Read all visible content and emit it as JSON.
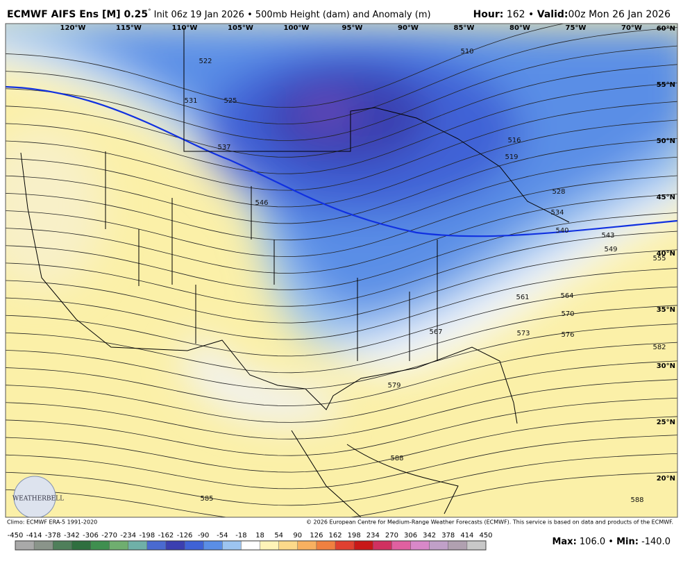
{
  "header": {
    "model": "ECMWF AIFS Ens [M] 0.25",
    "degree": "°",
    "init": "Init 06z 19 Jan 2026 • 500mb Height (dam) and Anomaly (m)",
    "hour_label": "Hour:",
    "hour": "162",
    "separator": "•",
    "valid_label": "Valid:",
    "valid": "00z Mon 26 Jan 2026"
  },
  "map": {
    "longitudes": [
      "120°W",
      "115°W",
      "110°W",
      "105°W",
      "100°W",
      "95°W",
      "90°W",
      "85°W",
      "80°W",
      "75°W",
      "70°W"
    ],
    "latitudes": [
      "60°N",
      "55°N",
      "50°N",
      "45°N",
      "40°N",
      "35°N",
      "30°N",
      "25°N",
      "20°N"
    ],
    "contour_labels": [
      "510",
      "516",
      "519",
      "522",
      "525",
      "528",
      "531",
      "534",
      "537",
      "540",
      "543",
      "546",
      "549",
      "555",
      "561",
      "564",
      "567",
      "570",
      "573",
      "576",
      "579",
      "582",
      "585",
      "588",
      "588"
    ],
    "logo": "WEATHERBELL"
  },
  "footer": {
    "climo": "Climo: ECMWF ERA-5 1991-2020",
    "copyright": "© 2026 European Centre for Medium-Range Weather Forecasts (ECMWF). This service is based on data and products of the ECMWF."
  },
  "colorbar": {
    "ticks": [
      -450,
      -414,
      -378,
      -342,
      -306,
      -270,
      -234,
      -198,
      -162,
      -126,
      -90,
      -54,
      -18,
      18,
      54,
      90,
      126,
      162,
      198,
      234,
      270,
      306,
      342,
      378,
      414,
      450
    ],
    "colors": [
      "#a9a9a9",
      "#8a948a",
      "#4f7f5a",
      "#2f6f3f",
      "#3f8f4f",
      "#6fae6f",
      "#6fb0a8",
      "#4a6ad0",
      "#3b3fb0",
      "#3f62d6",
      "#5a8ee6",
      "#9cc4f0",
      "#ffffff",
      "#fff4b8",
      "#fcd98a",
      "#f8b060",
      "#f08040",
      "#e04030",
      "#c81818",
      "#d03060",
      "#e060a0",
      "#d888c8",
      "#c0a0c8",
      "#b0a0b0",
      "#c8c8c8"
    ]
  },
  "extremes": {
    "max_label": "Max:",
    "max": "106.0",
    "separator": "•",
    "min_label": "Min:",
    "min": "-140.0"
  }
}
